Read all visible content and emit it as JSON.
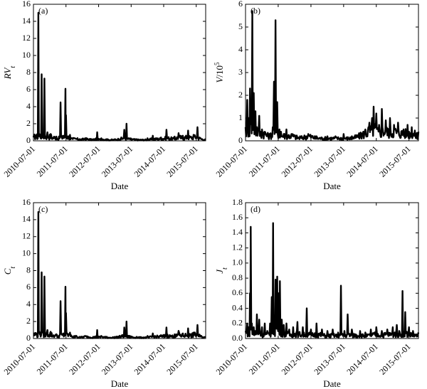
{
  "chart_data": [
    {
      "type": "line",
      "panel_label": "(a)",
      "ylabel_main": "RV",
      "ylabel_sub": "t",
      "ylabel_sup": "",
      "xlabel": "Date",
      "xticks": [
        "2010-07-01",
        "2011-07-01",
        "2012-07-01",
        "2013-07-01",
        "2014-07-01",
        "2015-07-01"
      ],
      "xlim": [
        "2010-07-01",
        "2015-10-15"
      ],
      "ylim": [
        0,
        16
      ],
      "yticks": [
        0,
        2,
        4,
        6,
        8,
        10,
        12,
        14,
        16
      ],
      "x": [
        "2010-07-01",
        "2010-08-01",
        "2010-08-25",
        "2010-09-05",
        "2010-09-15",
        "2010-10-01",
        "2010-10-20",
        "2010-11-01",
        "2010-11-20",
        "2010-12-05",
        "2010-12-20",
        "2011-01-10",
        "2011-02-01",
        "2011-03-01",
        "2011-03-15",
        "2011-04-01",
        "2011-05-01",
        "2011-06-01",
        "2011-06-25",
        "2011-07-01",
        "2011-08-01",
        "2011-08-15",
        "2011-09-01",
        "2011-09-15",
        "2011-10-01",
        "2011-11-01",
        "2011-12-01",
        "2012-02-01",
        "2012-05-01",
        "2012-06-15",
        "2012-07-01",
        "2012-08-01",
        "2012-10-01",
        "2013-01-01",
        "2013-03-01",
        "2013-04-15",
        "2013-05-10",
        "2013-06-01",
        "2013-09-01",
        "2014-01-01",
        "2014-03-01",
        "2014-06-01",
        "2014-08-01",
        "2014-11-01",
        "2014-12-15",
        "2015-02-01",
        "2015-04-01",
        "2015-05-01",
        "2015-06-01",
        "2015-07-15",
        "2015-08-20",
        "2015-10-15"
      ],
      "y": [
        0.4,
        0.6,
        15.0,
        0.8,
        0.5,
        7.8,
        0.6,
        7.3,
        0.5,
        1.0,
        0.4,
        0.8,
        0.3,
        0.3,
        0.5,
        0.2,
        4.5,
        0.6,
        6.1,
        3.0,
        0.5,
        0.7,
        0.3,
        0.2,
        0.3,
        0.2,
        0.2,
        0.3,
        0.2,
        1.0,
        0.2,
        0.3,
        0.2,
        0.2,
        0.2,
        1.3,
        2.0,
        0.3,
        0.2,
        0.3,
        0.6,
        0.4,
        1.3,
        0.5,
        0.9,
        0.6,
        1.2,
        0.5,
        0.7,
        1.6,
        0.3,
        0.2
      ],
      "base": [
        0.4,
        0.5,
        0.3,
        0.7,
        0.4,
        0.6,
        0.3,
        0.6,
        0.3,
        0.6,
        0.4,
        0.5,
        0.3,
        0.4,
        0.3,
        0.2,
        0.4,
        0.3,
        0.5,
        0.4,
        0.4,
        0.3,
        0.2,
        0.2,
        0.2,
        0.2,
        0.1,
        0.2,
        0.1,
        0.2,
        0.1,
        0.2,
        0.1,
        0.1,
        0.2,
        0.3,
        0.2,
        0.2,
        0.1,
        0.1,
        0.2,
        0.2,
        0.3,
        0.2,
        0.4,
        0.3,
        0.4,
        0.3,
        0.4,
        0.4,
        0.2,
        0.1
      ]
    },
    {
      "type": "line",
      "panel_label": "(b)",
      "ylabel_main": "V",
      "ylabel_sub": "",
      "ylabel_sup": "5",
      "ylabel_rest": "/10",
      "xlabel": "Date",
      "xticks": [
        "2010-07-01",
        "2011-07-01",
        "2012-07-01",
        "2013-07-01",
        "2014-07-01",
        "2015-07-01"
      ],
      "xlim": [
        "2010-07-01",
        "2015-10-15"
      ],
      "ylim": [
        0,
        6
      ],
      "yticks": [
        0,
        1,
        2,
        3,
        4,
        5,
        6
      ],
      "x": [
        "2010-07-01",
        "2010-07-20",
        "2010-08-05",
        "2010-08-20",
        "2010-09-01",
        "2010-09-15",
        "2010-10-01",
        "2010-10-20",
        "2010-11-05",
        "2010-12-01",
        "2011-01-01",
        "2011-02-01",
        "2011-03-01",
        "2011-04-01",
        "2011-05-01",
        "2011-05-15",
        "2011-06-01",
        "2011-06-20",
        "2011-07-15",
        "2011-08-01",
        "2011-09-01",
        "2011-10-01",
        "2011-12-01",
        "2012-03-01",
        "2012-06-01",
        "2012-09-01",
        "2013-01-01",
        "2013-04-01",
        "2013-07-01",
        "2013-10-01",
        "2014-01-01",
        "2014-03-01",
        "2014-04-15",
        "2014-05-15",
        "2014-06-01",
        "2014-07-01",
        "2014-08-01",
        "2014-09-01",
        "2014-10-15",
        "2014-12-01",
        "2015-01-15",
        "2015-03-01",
        "2015-05-01",
        "2015-06-15",
        "2015-08-01",
        "2015-10-15"
      ],
      "y": [
        0.6,
        1.8,
        1.0,
        2.3,
        1.4,
        5.7,
        2.1,
        1.3,
        0.6,
        1.1,
        0.5,
        0.4,
        0.3,
        0.3,
        0.6,
        2.6,
        5.3,
        1.7,
        0.5,
        0.4,
        0.3,
        0.5,
        0.3,
        0.2,
        0.3,
        0.2,
        0.2,
        0.2,
        0.3,
        0.2,
        0.3,
        0.5,
        0.8,
        1.0,
        1.5,
        1.2,
        0.7,
        1.4,
        0.9,
        1.0,
        0.7,
        0.8,
        0.5,
        0.7,
        0.6,
        0.4
      ],
      "base": [
        0.4,
        0.4,
        0.5,
        0.4,
        0.6,
        0.4,
        0.5,
        0.4,
        0.4,
        0.3,
        0.3,
        0.3,
        0.2,
        0.2,
        0.3,
        0.4,
        0.3,
        0.3,
        0.3,
        0.2,
        0.2,
        0.2,
        0.2,
        0.1,
        0.2,
        0.1,
        0.1,
        0.1,
        0.1,
        0.1,
        0.2,
        0.3,
        0.4,
        0.4,
        0.5,
        0.4,
        0.3,
        0.4,
        0.4,
        0.3,
        0.4,
        0.3,
        0.3,
        0.3,
        0.3,
        0.2
      ]
    },
    {
      "type": "line",
      "panel_label": "(c)",
      "ylabel_main": "C",
      "ylabel_sub": "t",
      "ylabel_sup": "",
      "xlabel": "Date",
      "xticks": [
        "2010-07-01",
        "2011-07-01",
        "2012-07-01",
        "2013-07-01",
        "2014-07-01",
        "2015-07-01"
      ],
      "xlim": [
        "2010-07-01",
        "2015-10-15"
      ],
      "ylim": [
        0,
        16
      ],
      "yticks": [
        0,
        2,
        4,
        6,
        8,
        10,
        12,
        14,
        16
      ],
      "x": [
        "2010-07-01",
        "2010-08-01",
        "2010-08-25",
        "2010-09-05",
        "2010-09-15",
        "2010-10-01",
        "2010-10-20",
        "2010-11-01",
        "2010-11-20",
        "2010-12-05",
        "2010-12-20",
        "2011-01-10",
        "2011-02-01",
        "2011-03-01",
        "2011-03-15",
        "2011-04-01",
        "2011-05-01",
        "2011-06-01",
        "2011-06-25",
        "2011-07-01",
        "2011-08-01",
        "2011-08-15",
        "2011-09-01",
        "2011-09-15",
        "2011-10-01",
        "2011-11-01",
        "2011-12-01",
        "2012-02-01",
        "2012-05-01",
        "2012-06-15",
        "2012-07-01",
        "2012-08-01",
        "2012-10-01",
        "2013-01-01",
        "2013-03-01",
        "2013-04-15",
        "2013-05-10",
        "2013-06-01",
        "2013-09-01",
        "2014-01-01",
        "2014-03-01",
        "2014-06-01",
        "2014-08-01",
        "2014-11-01",
        "2014-12-15",
        "2015-02-01",
        "2015-04-01",
        "2015-05-01",
        "2015-06-01",
        "2015-07-15",
        "2015-08-20",
        "2015-10-15"
      ],
      "y": [
        0.4,
        0.6,
        14.9,
        0.8,
        0.5,
        7.8,
        0.6,
        7.3,
        0.5,
        1.0,
        0.4,
        0.8,
        0.3,
        0.3,
        0.5,
        0.2,
        4.4,
        0.6,
        6.1,
        3.0,
        0.5,
        0.7,
        0.3,
        0.2,
        0.3,
        0.2,
        0.2,
        0.3,
        0.2,
        1.0,
        0.2,
        0.3,
        0.2,
        0.2,
        0.2,
        1.3,
        2.0,
        0.3,
        0.2,
        0.3,
        0.6,
        0.4,
        1.3,
        0.5,
        0.9,
        0.6,
        1.2,
        0.5,
        0.7,
        1.6,
        0.3,
        0.2
      ],
      "base": [
        0.4,
        0.5,
        0.3,
        0.7,
        0.4,
        0.6,
        0.3,
        0.6,
        0.3,
        0.6,
        0.4,
        0.5,
        0.3,
        0.4,
        0.3,
        0.2,
        0.4,
        0.3,
        0.5,
        0.4,
        0.4,
        0.3,
        0.2,
        0.2,
        0.2,
        0.2,
        0.1,
        0.2,
        0.1,
        0.2,
        0.1,
        0.2,
        0.1,
        0.1,
        0.2,
        0.3,
        0.2,
        0.2,
        0.1,
        0.1,
        0.2,
        0.2,
        0.3,
        0.2,
        0.4,
        0.3,
        0.4,
        0.3,
        0.4,
        0.4,
        0.2,
        0.1
      ]
    },
    {
      "type": "line",
      "panel_label": "(d)",
      "ylabel_main": "J",
      "ylabel_sub": "t",
      "ylabel_sup": "",
      "xlabel": "Date",
      "xticks": [
        "2010-07-01",
        "2011-07-01",
        "2012-07-01",
        "2013-07-01",
        "2014-07-01",
        "2015-07-01"
      ],
      "xlim": [
        "2010-07-01",
        "2015-10-15"
      ],
      "ylim": [
        0,
        1.8
      ],
      "yticks": [
        0,
        0.2,
        0.4,
        0.6,
        0.8,
        1.0,
        1.2,
        1.4,
        1.6,
        1.8
      ],
      "x": [
        "2010-07-01",
        "2010-07-20",
        "2010-08-05",
        "2010-08-20",
        "2010-08-28",
        "2010-09-10",
        "2010-10-01",
        "2010-10-20",
        "2010-11-05",
        "2010-12-01",
        "2011-01-01",
        "2011-02-01",
        "2011-03-01",
        "2011-04-01",
        "2011-04-20",
        "2011-05-05",
        "2011-05-20",
        "2011-06-01",
        "2011-06-20",
        "2011-07-05",
        "2011-07-20",
        "2011-08-10",
        "2011-09-01",
        "2011-10-01",
        "2011-11-01",
        "2011-12-15",
        "2012-02-01",
        "2012-04-01",
        "2012-05-15",
        "2012-07-01",
        "2012-09-01",
        "2012-11-01",
        "2013-01-01",
        "2013-03-01",
        "2013-05-01",
        "2013-06-01",
        "2013-07-10",
        "2013-08-15",
        "2013-10-01",
        "2014-01-01",
        "2014-03-01",
        "2014-05-01",
        "2014-07-01",
        "2014-09-01",
        "2014-11-01",
        "2015-01-01",
        "2015-02-15",
        "2015-03-15",
        "2015-04-20",
        "2015-05-20",
        "2015-07-01",
        "2015-08-15",
        "2015-10-15"
      ],
      "y": [
        0.1,
        0.2,
        0.15,
        0.6,
        1.48,
        0.2,
        0.15,
        0.1,
        0.32,
        0.25,
        0.15,
        0.2,
        0.1,
        0.2,
        0.55,
        1.53,
        0.3,
        0.78,
        0.82,
        0.6,
        0.76,
        0.25,
        0.18,
        0.2,
        0.12,
        0.15,
        0.22,
        0.15,
        0.4,
        0.12,
        0.2,
        0.12,
        0.1,
        0.12,
        0.08,
        0.7,
        0.1,
        0.32,
        0.12,
        0.1,
        0.08,
        0.12,
        0.15,
        0.1,
        0.12,
        0.15,
        0.18,
        0.1,
        0.63,
        0.35,
        0.15,
        0.1,
        0.08
      ],
      "base": [
        0.05,
        0.08,
        0.05,
        0.1,
        0.1,
        0.08,
        0.05,
        0.05,
        0.06,
        0.08,
        0.05,
        0.06,
        0.04,
        0.06,
        0.08,
        0.1,
        0.08,
        0.1,
        0.12,
        0.1,
        0.1,
        0.08,
        0.06,
        0.06,
        0.04,
        0.05,
        0.06,
        0.04,
        0.06,
        0.04,
        0.05,
        0.04,
        0.03,
        0.04,
        0.03,
        0.05,
        0.03,
        0.05,
        0.04,
        0.04,
        0.03,
        0.04,
        0.05,
        0.04,
        0.05,
        0.05,
        0.06,
        0.04,
        0.06,
        0.06,
        0.05,
        0.04,
        0.03
      ]
    }
  ]
}
